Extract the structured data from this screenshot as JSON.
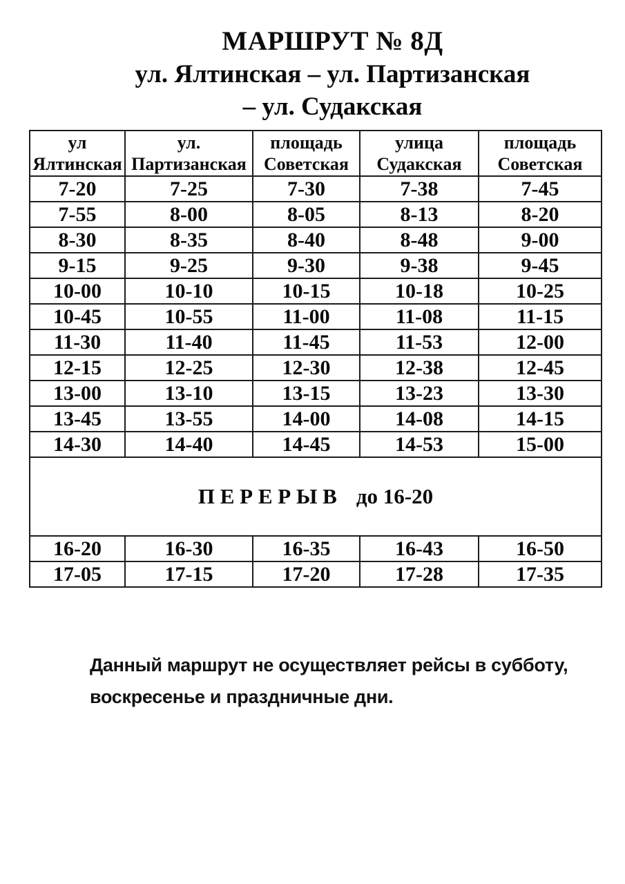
{
  "title": {
    "line1": "МАРШРУТ № 8Д",
    "line2": "ул. Ялтинская – ул. Партизанская",
    "line3": "– ул. Судакская"
  },
  "table": {
    "headers": [
      {
        "line1": "ул",
        "line2": "Ялтинская"
      },
      {
        "line1": "ул.",
        "line2": "Партизанская"
      },
      {
        "line1": "площадь",
        "line2": "Советская"
      },
      {
        "line1": "улица",
        "line2": "Судакская"
      },
      {
        "line1": "площадь",
        "line2": "Советская"
      }
    ],
    "rows_before_break": [
      [
        "7-20",
        "7-25",
        "7-30",
        "7-38",
        "7-45"
      ],
      [
        "7-55",
        "8-00",
        "8-05",
        "8-13",
        "8-20"
      ],
      [
        "8-30",
        "8-35",
        "8-40",
        "8-48",
        "9-00"
      ],
      [
        "9-15",
        "9-25",
        "9-30",
        "9-38",
        "9-45"
      ],
      [
        "10-00",
        "10-10",
        "10-15",
        "10-18",
        "10-25"
      ],
      [
        "10-45",
        "10-55",
        "11-00",
        "11-08",
        "11-15"
      ],
      [
        "11-30",
        "11-40",
        "11-45",
        "11-53",
        "12-00"
      ],
      [
        "12-15",
        "12-25",
        "12-30",
        "12-38",
        "12-45"
      ],
      [
        "13-00",
        "13-10",
        "13-15",
        "13-23",
        "13-30"
      ],
      [
        "13-45",
        "13-55",
        "14-00",
        "14-08",
        "14-15"
      ],
      [
        "14-30",
        "14-40",
        "14-45",
        "14-53",
        "15-00"
      ]
    ],
    "break_label": "П Е Р Е Р Ы В",
    "break_until": "до 16-20",
    "rows_after_break": [
      [
        "16-20",
        "16-30",
        "16-35",
        "16-43",
        "16-50"
      ],
      [
        "17-05",
        "17-15",
        "17-20",
        "17-28",
        "17-35"
      ]
    ]
  },
  "note": {
    "line1": "Данный маршрут не осуществляет рейсы в субботу,",
    "line2": "воскресенье и праздничные дни."
  },
  "colors": {
    "background": "#ffffff",
    "text": "#0b0b0b",
    "border": "#1c1c1c"
  }
}
